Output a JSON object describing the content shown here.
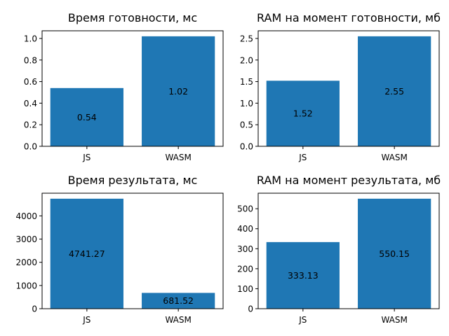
{
  "chart_data": [
    {
      "type": "bar",
      "title": "Время готовности, мс",
      "categories": [
        "JS",
        "WASM"
      ],
      "values": [
        0.54,
        1.02
      ],
      "value_labels": [
        "0.54",
        "1.02"
      ],
      "yticks": [
        "0.0",
        "0.2",
        "0.4",
        "0.6",
        "0.8",
        "1.0"
      ],
      "ylim": [
        0,
        1.071
      ],
      "grid": false,
      "color": "#1f77b4"
    },
    {
      "type": "bar",
      "title": "RAM на момент готовности, мб",
      "categories": [
        "JS",
        "WASM"
      ],
      "values": [
        1.52,
        2.55
      ],
      "value_labels": [
        "1.52",
        "2.55"
      ],
      "yticks": [
        "0.0",
        "0.5",
        "1.0",
        "1.5",
        "2.0",
        "2.5"
      ],
      "ylim": [
        0,
        2.6775
      ],
      "grid": false,
      "color": "#1f77b4"
    },
    {
      "type": "bar",
      "title": "Время результата, мс",
      "categories": [
        "JS",
        "WASM"
      ],
      "values": [
        4741.27,
        681.52
      ],
      "value_labels": [
        "4741.27",
        "681.52"
      ],
      "yticks": [
        "0",
        "1000",
        "2000",
        "3000",
        "4000"
      ],
      "ylim": [
        0,
        4978.33
      ],
      "grid": false,
      "color": "#1f77b4"
    },
    {
      "type": "bar",
      "title": "RAM на момент результата, мб",
      "categories": [
        "JS",
        "WASM"
      ],
      "values": [
        333.13,
        550.15
      ],
      "value_labels": [
        "333.13",
        "550.15"
      ],
      "yticks": [
        "0",
        "100",
        "200",
        "300",
        "400",
        "500"
      ],
      "ylim": [
        0,
        577.66
      ],
      "grid": false,
      "color": "#1f77b4"
    }
  ]
}
